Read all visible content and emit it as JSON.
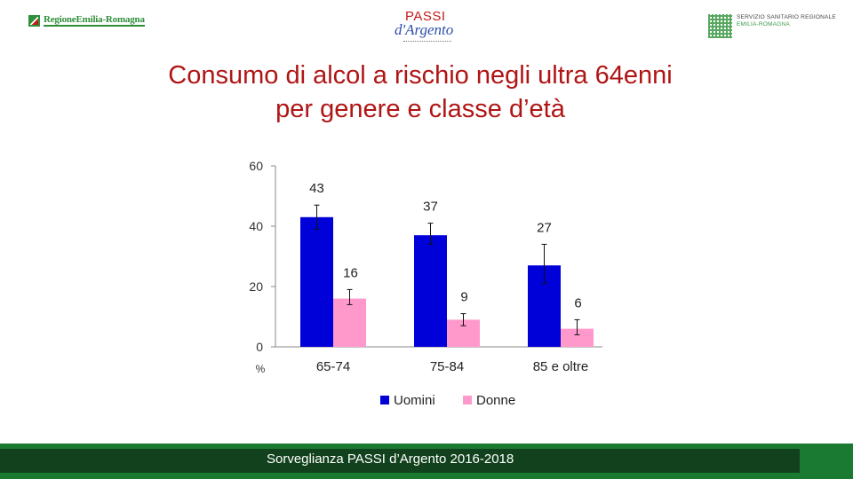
{
  "header": {
    "left_logo_text": "RegioneEmilia-Romagna",
    "center_logo_line1": "PASSI",
    "center_logo_line2": "d'Argento",
    "right_logo_line1": "SERVIZIO SANITARIO REGIONALE",
    "right_logo_line2": "EMILIA-ROMAGNA"
  },
  "title": {
    "line1": "Consumo di alcol a rischio negli ultra 64enni",
    "line2": "per genere e classe d’età"
  },
  "footer": {
    "text": "Sorveglianza PASSI d’Argento 2016-2018"
  },
  "colors": {
    "uomini": "#0000d9",
    "donne": "#ff99cc",
    "title": "#b01515",
    "footer": "#12421d"
  },
  "chart_data": {
    "type": "bar",
    "title": "",
    "xlabel": "",
    "ylabel": "%",
    "ylim": [
      0,
      60
    ],
    "yticks": [
      0,
      20,
      40,
      60
    ],
    "categories": [
      "65-74",
      "75-84",
      "85 e oltre"
    ],
    "series": [
      {
        "name": "Uomini",
        "values": [
          43,
          37,
          27
        ],
        "error_low": [
          39,
          34,
          21
        ],
        "error_high": [
          47,
          41,
          34
        ]
      },
      {
        "name": "Donne",
        "values": [
          16,
          9,
          6
        ],
        "error_low": [
          14,
          7,
          4
        ],
        "error_high": [
          19,
          11,
          9
        ]
      }
    ],
    "legend": {
      "position": "bottom",
      "labels": [
        "Uomini",
        "Donne"
      ]
    },
    "grid": false
  }
}
